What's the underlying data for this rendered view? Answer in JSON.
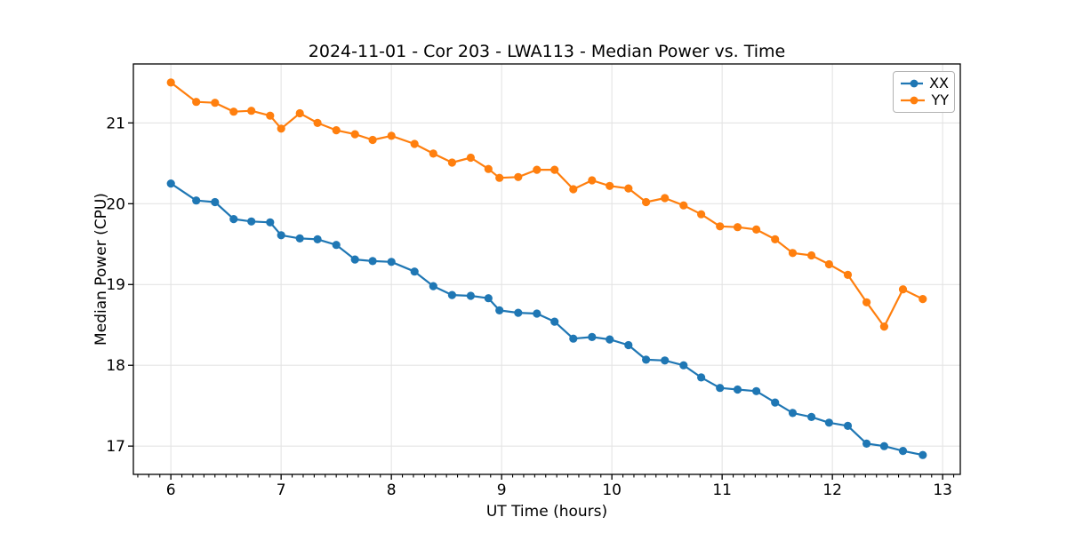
{
  "chart_data": {
    "type": "line",
    "title": "2024-11-01 - Cor 203 - LWA113 - Median Power vs. Time",
    "xlabel": "UT Time (hours)",
    "ylabel": "Median Power (CPU)",
    "xlim": [
      5.66,
      13.16
    ],
    "ylim": [
      16.65,
      21.73
    ],
    "xticks": [
      6,
      7,
      8,
      9,
      10,
      11,
      12,
      13
    ],
    "yticks": [
      17,
      18,
      19,
      20,
      21
    ],
    "minor_tick_step_x": 0.1,
    "grid": true,
    "grid_color": "#e4e4e4",
    "legend_position": "upper right",
    "x": [
      6.0,
      6.23,
      6.4,
      6.57,
      6.73,
      6.9,
      7.0,
      7.17,
      7.33,
      7.5,
      7.67,
      7.83,
      8.0,
      8.21,
      8.38,
      8.55,
      8.72,
      8.88,
      8.98,
      9.15,
      9.32,
      9.48,
      9.65,
      9.82,
      9.98,
      10.15,
      10.31,
      10.48,
      10.65,
      10.81,
      10.98,
      11.14,
      11.31,
      11.48,
      11.64,
      11.81,
      11.97,
      12.14,
      12.31,
      12.47,
      12.64,
      12.82
    ],
    "series": [
      {
        "name": "XX",
        "color": "#1f77b4",
        "values": [
          20.25,
          20.04,
          20.02,
          19.81,
          19.78,
          19.77,
          19.61,
          19.57,
          19.56,
          19.49,
          19.31,
          19.29,
          19.28,
          19.16,
          18.98,
          18.87,
          18.86,
          18.83,
          18.68,
          18.65,
          18.64,
          18.54,
          18.33,
          18.35,
          18.32,
          18.25,
          18.07,
          18.06,
          18.0,
          17.85,
          17.72,
          17.7,
          17.68,
          17.54,
          17.41,
          17.36,
          17.29,
          17.25,
          17.03,
          17.0,
          16.94,
          16.89
        ]
      },
      {
        "name": "YY",
        "color": "#ff7f0e",
        "values": [
          21.5,
          21.26,
          21.25,
          21.14,
          21.15,
          21.09,
          20.93,
          21.12,
          21.0,
          20.91,
          20.86,
          20.79,
          20.84,
          20.74,
          20.62,
          20.51,
          20.57,
          20.43,
          20.32,
          20.33,
          20.42,
          20.42,
          20.18,
          20.29,
          20.22,
          20.19,
          20.02,
          20.07,
          19.98,
          19.87,
          19.72,
          19.71,
          19.68,
          19.56,
          19.39,
          19.36,
          19.25,
          19.12,
          18.78,
          18.48,
          18.94,
          18.82
        ]
      }
    ]
  }
}
